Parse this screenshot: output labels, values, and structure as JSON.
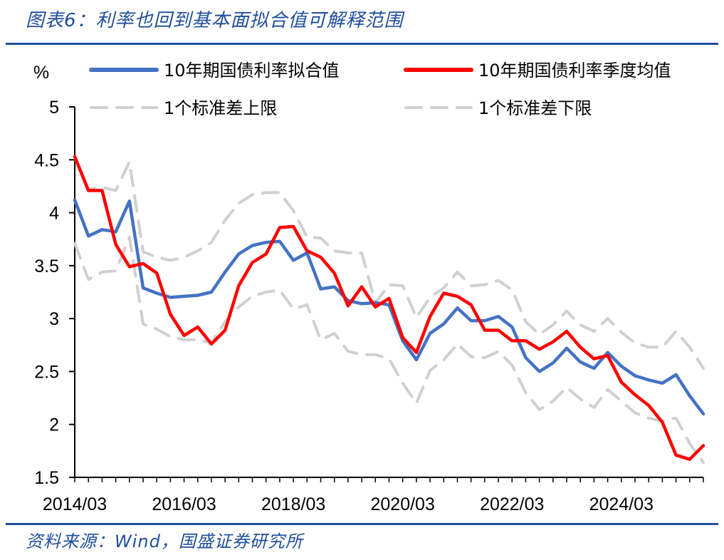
{
  "header": {
    "title": "图表6：利率也回到基本面拟合值可解释范围"
  },
  "footer": {
    "source": "资料来源：Wind，国盛证券研究所"
  },
  "chart_data": {
    "type": "line",
    "ylabel": "%",
    "ylim": [
      1.5,
      5
    ],
    "yticks": [
      "1.5",
      "2",
      "2.5",
      "3",
      "3.5",
      "4",
      "4.5",
      "5"
    ],
    "xlim": [
      "2014/03",
      "2025/09"
    ],
    "xticks": [
      "2014/03",
      "2016/03",
      "2018/03",
      "2020/03",
      "2022/03",
      "2024/03"
    ],
    "legend_placement": "top",
    "x": [
      "2014/03",
      "2014/06",
      "2014/09",
      "2014/12",
      "2015/03",
      "2015/06",
      "2015/09",
      "2015/12",
      "2016/03",
      "2016/06",
      "2016/09",
      "2016/12",
      "2017/03",
      "2017/06",
      "2017/09",
      "2017/12",
      "2018/03",
      "2018/06",
      "2018/09",
      "2018/12",
      "2019/03",
      "2019/06",
      "2019/09",
      "2019/12",
      "2020/03",
      "2020/06",
      "2020/09",
      "2020/12",
      "2021/03",
      "2021/06",
      "2021/09",
      "2021/12",
      "2022/03",
      "2022/06",
      "2022/09",
      "2022/12",
      "2023/03",
      "2023/06",
      "2023/09",
      "2023/12",
      "2024/03",
      "2024/06",
      "2024/09",
      "2024/12",
      "2025/03",
      "2025/06",
      "2025/09"
    ],
    "series": [
      {
        "name": "10年期国债利率拟合值",
        "color": "#4472c4",
        "style": "solid",
        "values": [
          4.12,
          3.78,
          3.84,
          3.82,
          4.11,
          3.29,
          3.24,
          3.2,
          3.21,
          3.22,
          3.25,
          3.44,
          3.61,
          3.69,
          3.72,
          3.73,
          3.55,
          3.62,
          3.28,
          3.3,
          3.17,
          3.14,
          3.15,
          3.13,
          2.79,
          2.61,
          2.86,
          2.95,
          3.1,
          2.98,
          2.98,
          3.02,
          2.92,
          2.63,
          2.5,
          2.58,
          2.72,
          2.59,
          2.53,
          2.68,
          2.55,
          2.46,
          2.42,
          2.39,
          2.47,
          2.27,
          2.1
        ]
      },
      {
        "name": "10年期国债利率季度均值",
        "color": "#ff0000",
        "style": "solid",
        "values": [
          4.53,
          4.21,
          4.21,
          3.7,
          3.49,
          3.52,
          3.43,
          3.04,
          2.84,
          2.92,
          2.76,
          2.89,
          3.31,
          3.53,
          3.61,
          3.86,
          3.87,
          3.64,
          3.58,
          3.43,
          3.12,
          3.3,
          3.11,
          3.19,
          2.82,
          2.68,
          3.02,
          3.24,
          3.21,
          3.13,
          2.89,
          2.89,
          2.79,
          2.79,
          2.71,
          2.78,
          2.88,
          2.73,
          2.62,
          2.65,
          2.4,
          2.28,
          2.18,
          2.02,
          1.71,
          1.67,
          1.8
        ]
      },
      {
        "name": "1个标准差上限",
        "color": "#d0d0d0",
        "style": "dashed",
        "values": [
          4.52,
          4.22,
          4.24,
          4.21,
          4.48,
          3.63,
          3.58,
          3.55,
          3.58,
          3.64,
          3.72,
          3.93,
          4.09,
          4.17,
          4.19,
          4.19,
          4.02,
          3.77,
          3.76,
          3.64,
          3.62,
          3.62,
          3.15,
          3.32,
          3.31,
          3.01,
          3.2,
          3.29,
          3.44,
          3.31,
          3.32,
          3.36,
          3.27,
          2.97,
          2.85,
          2.94,
          3.07,
          2.94,
          2.88,
          3.0,
          2.87,
          2.77,
          2.73,
          2.73,
          2.88,
          2.73,
          2.53
        ]
      },
      {
        "name": "1个标准差下限",
        "color": "#d0d0d0",
        "style": "dashed",
        "values": [
          3.71,
          3.37,
          3.44,
          3.45,
          3.77,
          2.95,
          2.9,
          2.83,
          2.8,
          2.8,
          2.77,
          2.97,
          3.11,
          3.21,
          3.25,
          3.27,
          3.09,
          3.13,
          2.8,
          2.86,
          2.69,
          2.66,
          2.66,
          2.62,
          2.39,
          2.2,
          2.51,
          2.61,
          2.76,
          2.64,
          2.63,
          2.69,
          2.56,
          2.3,
          2.14,
          2.22,
          2.35,
          2.24,
          2.16,
          2.33,
          2.22,
          2.11,
          2.06,
          2.03,
          2.06,
          1.82,
          1.64
        ]
      }
    ]
  }
}
